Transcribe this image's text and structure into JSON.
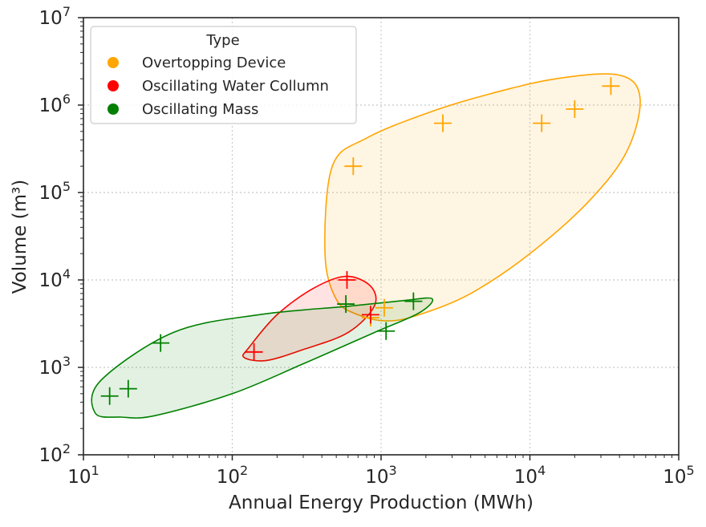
{
  "chart_data": {
    "type": "scatter",
    "title": "",
    "xlabel": "Annual Energy Production (MWh)",
    "ylabel": "Volume (m³)",
    "xscale": "log",
    "yscale": "log",
    "xlim": [
      10,
      100000
    ],
    "ylim": [
      100,
      10000000
    ],
    "grid": true,
    "grid_style": "dotted",
    "x_ticks": [
      {
        "base": "10",
        "exp": "1"
      },
      {
        "base": "10",
        "exp": "2"
      },
      {
        "base": "10",
        "exp": "3"
      },
      {
        "base": "10",
        "exp": "4"
      },
      {
        "base": "10",
        "exp": "5"
      }
    ],
    "y_ticks": [
      {
        "base": "10",
        "exp": "2"
      },
      {
        "base": "10",
        "exp": "3"
      },
      {
        "base": "10",
        "exp": "4"
      },
      {
        "base": "10",
        "exp": "5"
      },
      {
        "base": "10",
        "exp": "6"
      },
      {
        "base": "10",
        "exp": "7"
      }
    ],
    "legend": {
      "title": "Type",
      "placement": "upper-left",
      "entries": [
        {
          "label": "Overtopping Device",
          "color": "#FFA500"
        },
        {
          "label": "Oscillating Water Collumn",
          "color": "#FF0000"
        },
        {
          "label": "Oscillating Mass",
          "color": "#008000"
        }
      ]
    },
    "series": [
      {
        "name": "Overtopping Device",
        "color": "#FFA500",
        "marker": "plus",
        "points": [
          {
            "x": 650,
            "y": 200000
          },
          {
            "x": 2600,
            "y": 620000
          },
          {
            "x": 12000,
            "y": 620000
          },
          {
            "x": 20000,
            "y": 900000
          },
          {
            "x": 35000,
            "y": 1650000
          },
          {
            "x": 1050,
            "y": 4800
          },
          {
            "x": 850,
            "y": 3700
          }
        ],
        "region": [
          [
            420,
            20000
          ],
          [
            470,
            200000
          ],
          [
            800,
            420000
          ],
          [
            2000,
            800000
          ],
          [
            5000,
            1300000
          ],
          [
            15000,
            2000000
          ],
          [
            40000,
            2200000
          ],
          [
            55000,
            1200000
          ],
          [
            45000,
            300000
          ],
          [
            25000,
            80000
          ],
          [
            10000,
            20000
          ],
          [
            4000,
            7000
          ],
          [
            1800,
            4000
          ],
          [
            1100,
            3400
          ],
          [
            700,
            4000
          ],
          [
            500,
            6000
          ]
        ]
      },
      {
        "name": "Oscillating Water Collumn",
        "color": "#FF0000",
        "marker": "plus",
        "points": [
          {
            "x": 590,
            "y": 10000
          },
          {
            "x": 140,
            "y": 1500
          },
          {
            "x": 850,
            "y": 4000
          }
        ],
        "region": [
          [
            130,
            1700
          ],
          [
            200,
            4000
          ],
          [
            350,
            8000
          ],
          [
            580,
            11000
          ],
          [
            850,
            8500
          ],
          [
            900,
            5000
          ],
          [
            600,
            2500
          ],
          [
            300,
            1600
          ],
          [
            170,
            1200
          ],
          [
            120,
            1300
          ]
        ]
      },
      {
        "name": "Oscillating Mass",
        "color": "#008000",
        "marker": "plus",
        "points": [
          {
            "x": 15,
            "y": 470
          },
          {
            "x": 20,
            "y": 570
          },
          {
            "x": 33,
            "y": 1900
          },
          {
            "x": 580,
            "y": 5300
          },
          {
            "x": 1080,
            "y": 2600
          },
          {
            "x": 1650,
            "y": 5700
          }
        ],
        "region": [
          [
            12,
            300
          ],
          [
            13,
            700
          ],
          [
            40,
            2500
          ],
          [
            150,
            4000
          ],
          [
            600,
            5000
          ],
          [
            1400,
            5800
          ],
          [
            2200,
            6100
          ],
          [
            1800,
            4200
          ],
          [
            900,
            2500
          ],
          [
            300,
            1100
          ],
          [
            100,
            500
          ],
          [
            30,
            280
          ],
          [
            18,
            270
          ]
        ]
      }
    ]
  }
}
